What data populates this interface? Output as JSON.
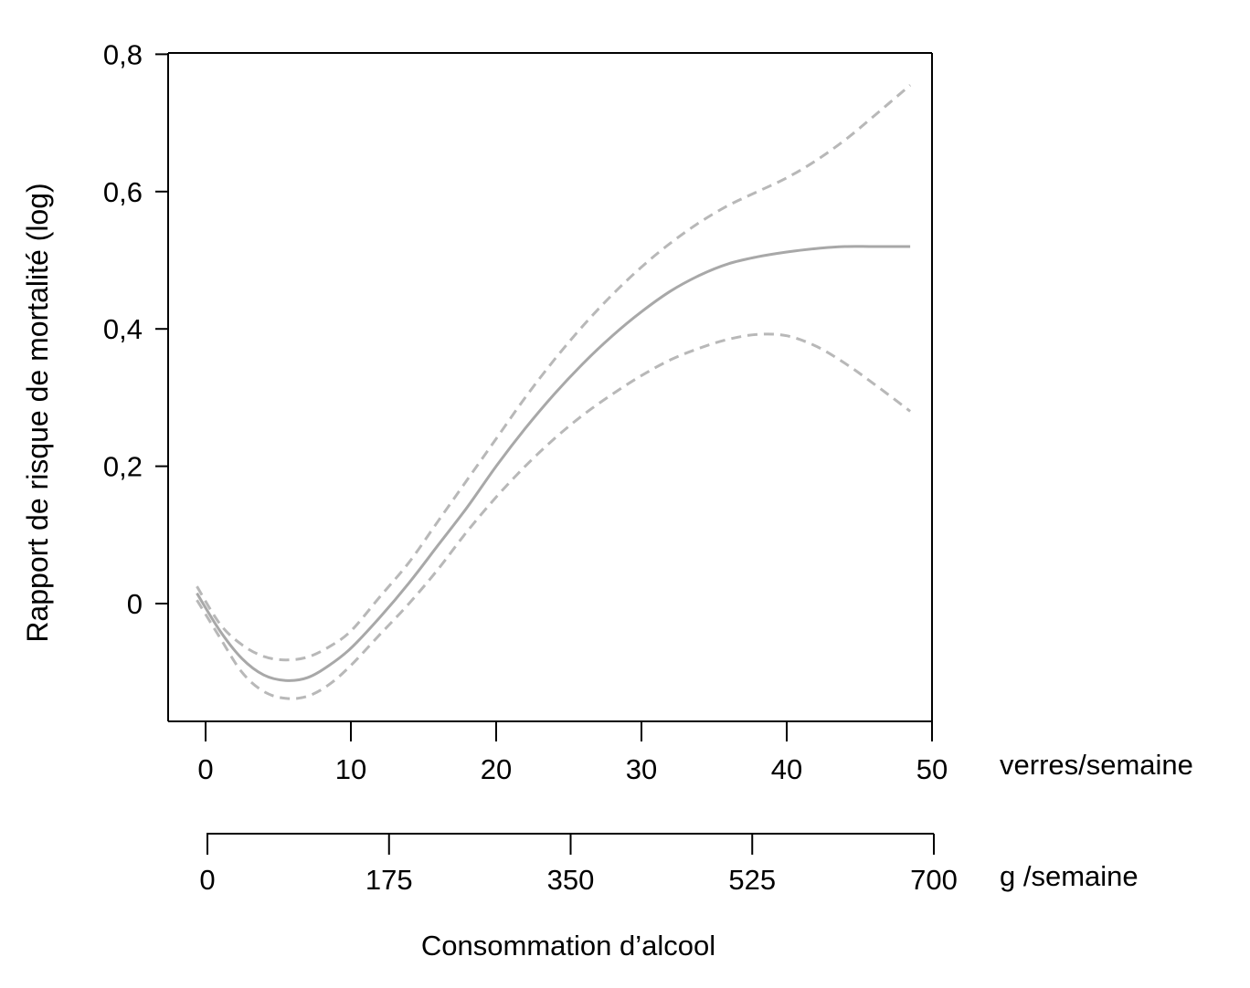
{
  "chart_data": {
    "type": "line",
    "xlabel": "Consommation d’alcool",
    "ylabel": "Rapport de risque de mortalité (log)",
    "ylim": [
      -0.17,
      0.8
    ],
    "xlim": [
      -2.5,
      50
    ],
    "yticks": [
      {
        "value": 0,
        "label": "0"
      },
      {
        "value": 0.2,
        "label": "0,2"
      },
      {
        "value": 0.4,
        "label": "0,4"
      },
      {
        "value": 0.6,
        "label": "0,6"
      },
      {
        "value": 0.8,
        "label": "0,8"
      }
    ],
    "x_axis_primary": {
      "unit_label": "verres/semaine",
      "ticks": [
        {
          "value": 0,
          "label": "0"
        },
        {
          "value": 10,
          "label": "10"
        },
        {
          "value": 20,
          "label": "20"
        },
        {
          "value": 30,
          "label": "30"
        },
        {
          "value": 40,
          "label": "40"
        },
        {
          "value": 50,
          "label": "50"
        }
      ]
    },
    "x_axis_secondary": {
      "unit_label": "g /semaine",
      "ticks": [
        {
          "value": 0,
          "label": "0"
        },
        {
          "value": 175,
          "label": "175"
        },
        {
          "value": 350,
          "label": "350"
        },
        {
          "value": 525,
          "label": "525"
        },
        {
          "value": 700,
          "label": "700"
        }
      ]
    },
    "colors": {
      "curve": "#a8a8a8",
      "band": "#b8b8b8",
      "axis": "#000000"
    },
    "series": [
      {
        "style": "solid",
        "points": [
          [
            -0.6,
            0.015
          ],
          [
            1,
            -0.04
          ],
          [
            2.5,
            -0.08
          ],
          [
            4,
            -0.104
          ],
          [
            5.5,
            -0.112
          ],
          [
            7,
            -0.108
          ],
          [
            8.5,
            -0.09
          ],
          [
            10,
            -0.065
          ],
          [
            12,
            -0.02
          ],
          [
            14,
            0.03
          ],
          [
            16,
            0.085
          ],
          [
            18,
            0.14
          ],
          [
            20,
            0.2
          ],
          [
            22,
            0.255
          ],
          [
            24,
            0.305
          ],
          [
            26,
            0.35
          ],
          [
            28,
            0.39
          ],
          [
            30,
            0.425
          ],
          [
            32,
            0.455
          ],
          [
            34,
            0.478
          ],
          [
            36,
            0.495
          ],
          [
            38,
            0.505
          ],
          [
            40,
            0.512
          ],
          [
            42,
            0.517
          ],
          [
            44,
            0.52
          ],
          [
            46,
            0.52
          ],
          [
            48.5,
            0.52
          ]
        ]
      },
      {
        "style": "dashed",
        "points": [
          [
            -0.6,
            0.025
          ],
          [
            1,
            -0.03
          ],
          [
            2.5,
            -0.06
          ],
          [
            4,
            -0.077
          ],
          [
            5.5,
            -0.082
          ],
          [
            7,
            -0.078
          ],
          [
            8.5,
            -0.063
          ],
          [
            10,
            -0.04
          ],
          [
            12,
            0.01
          ],
          [
            14,
            0.06
          ],
          [
            16,
            0.12
          ],
          [
            18,
            0.18
          ],
          [
            20,
            0.24
          ],
          [
            22,
            0.3
          ],
          [
            24,
            0.355
          ],
          [
            26,
            0.405
          ],
          [
            28,
            0.45
          ],
          [
            30,
            0.49
          ],
          [
            32,
            0.525
          ],
          [
            34,
            0.555
          ],
          [
            36,
            0.58
          ],
          [
            38,
            0.6
          ],
          [
            40,
            0.62
          ],
          [
            42,
            0.645
          ],
          [
            44,
            0.675
          ],
          [
            46,
            0.71
          ],
          [
            48.5,
            0.755
          ]
        ]
      },
      {
        "style": "dashed",
        "points": [
          [
            -0.6,
            0.005
          ],
          [
            1,
            -0.05
          ],
          [
            2.5,
            -0.1
          ],
          [
            4,
            -0.128
          ],
          [
            5.5,
            -0.138
          ],
          [
            7,
            -0.135
          ],
          [
            8.5,
            -0.118
          ],
          [
            10,
            -0.09
          ],
          [
            12,
            -0.045
          ],
          [
            14,
            0.0
          ],
          [
            16,
            0.05
          ],
          [
            18,
            0.105
          ],
          [
            20,
            0.155
          ],
          [
            22,
            0.2
          ],
          [
            24,
            0.24
          ],
          [
            26,
            0.275
          ],
          [
            28,
            0.305
          ],
          [
            30,
            0.332
          ],
          [
            32,
            0.355
          ],
          [
            34,
            0.372
          ],
          [
            36,
            0.385
          ],
          [
            38,
            0.392
          ],
          [
            40,
            0.39
          ],
          [
            42,
            0.375
          ],
          [
            44,
            0.35
          ],
          [
            46,
            0.32
          ],
          [
            48.5,
            0.28
          ]
        ]
      }
    ]
  }
}
